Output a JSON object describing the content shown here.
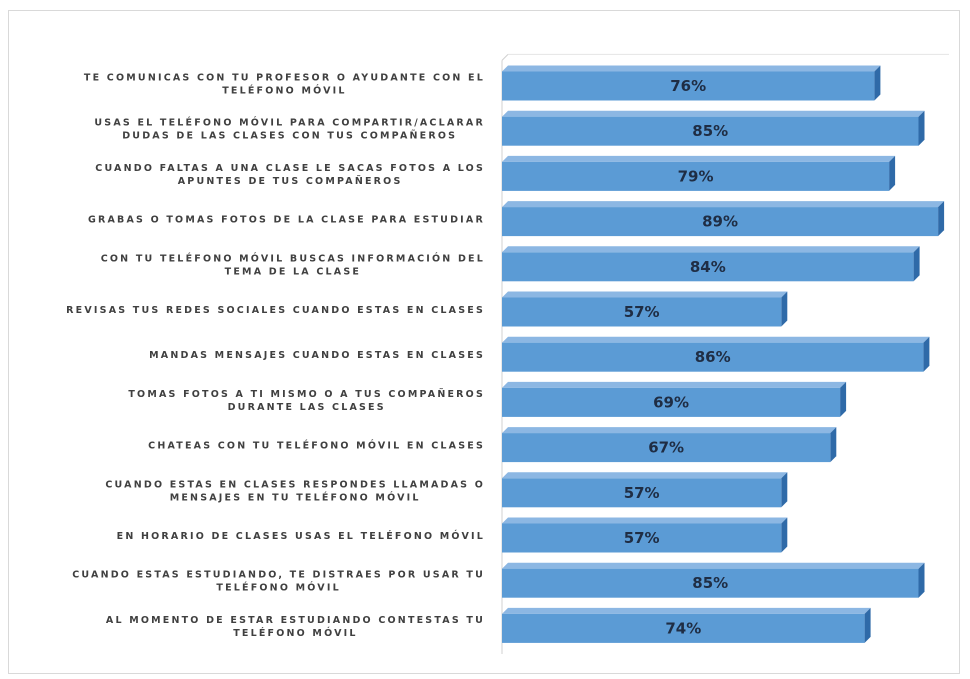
{
  "chart_data": {
    "type": "bar",
    "orientation": "horizontal",
    "title": "",
    "xlabel": "",
    "ylabel": "",
    "xlim": [
      0,
      100
    ],
    "grid": false,
    "legend": "none",
    "bar_color": "#5b9bd5",
    "categories": [
      [
        "TE COMUNICAS CON TU PROFESOR O AYUDANTE CON EL",
        "TELÉFONO MÓVIL"
      ],
      [
        "USAS EL TELÉFONO MÓVIL PARA COMPARTIR/ACLARAR",
        "DUDAS DE LAS CLASES CON TUS COMPAÑEROS"
      ],
      [
        "CUANDO FALTAS A UNA CLASE LE SACAS FOTOS A LOS",
        "APUNTES DE TUS COMPAÑEROS"
      ],
      [
        "GRABAS O TOMAS FOTOS DE LA CLASE PARA ESTUDIAR"
      ],
      [
        "CON TU TELÉFONO MÓVIL BUSCAS INFORMACIÓN DEL",
        "TEMA DE LA CLASE"
      ],
      [
        "REVISAS TUS REDES SOCIALES CUANDO ESTAS EN CLASES"
      ],
      [
        "MANDAS MENSAJES CUANDO ESTAS EN CLASES"
      ],
      [
        "TOMAS FOTOS A TI MISMO O A TUS COMPAÑEROS",
        "DURANTE LAS CLASES"
      ],
      [
        "CHATEAS CON TU TELÉFONO MÓVIL EN CLASES"
      ],
      [
        "CUANDO ESTAS EN CLASES RESPONDES LLAMADAS O",
        "MENSAJES EN TU TELÉFONO MÓVIL"
      ],
      [
        "EN HORARIO DE CLASES USAS EL TELÉFONO MÓVIL"
      ],
      [
        "CUANDO ESTAS ESTUDIANDO, TE DISTRAES POR USAR TU",
        "TELÉFONO MÓVIL"
      ],
      [
        "AL MOMENTO DE ESTAR ESTUDIANDO CONTESTAS TU",
        "TELÉFONO MÓVIL"
      ]
    ],
    "values": [
      76,
      85,
      79,
      89,
      84,
      57,
      86,
      69,
      67,
      57,
      57,
      85,
      74
    ],
    "value_labels": [
      "76%",
      "85%",
      "79%",
      "89%",
      "84%",
      "57%",
      "86%",
      "69%",
      "67%",
      "57%",
      "57%",
      "85%",
      "74%"
    ]
  }
}
